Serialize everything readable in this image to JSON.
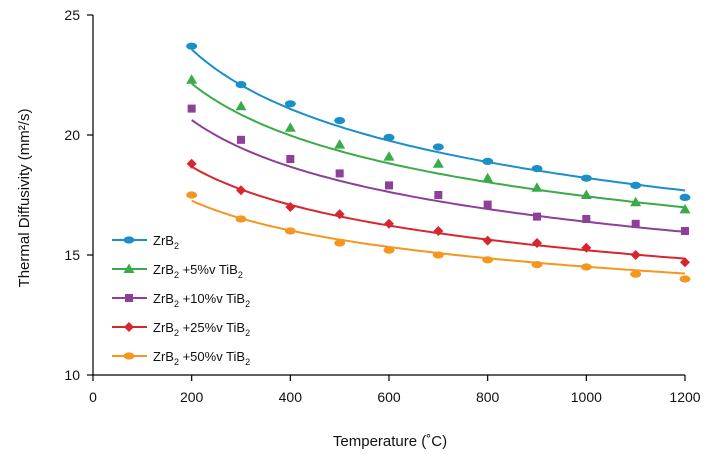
{
  "chart_data": {
    "type": "line",
    "xlabel": "Temperature (˚C)",
    "ylabel": "Thermal Diffusivity (mm²/s)",
    "xlim": [
      0,
      1200
    ],
    "ylim": [
      10,
      25
    ],
    "xticks": [
      0,
      200,
      400,
      600,
      800,
      1000,
      1200
    ],
    "yticks": [
      10,
      15,
      20,
      25
    ],
    "grid": false,
    "legend_position": "lower-left",
    "series": [
      {
        "name": "ZrB₂",
        "name_parts": {
          "base": "ZrB",
          "sub": "2",
          "suffix": ""
        },
        "color": "#1a8fc9",
        "marker": "circle",
        "x": [
          200,
          300,
          400,
          500,
          600,
          700,
          800,
          900,
          1000,
          1100,
          1200
        ],
        "y": [
          23.7,
          22.1,
          21.3,
          20.6,
          19.9,
          19.5,
          18.9,
          18.6,
          18.2,
          17.9,
          17.4
        ],
        "fit": {
          "a": 55.0,
          "b": -0.16
        }
      },
      {
        "name": "ZrB₂ +5%v TiB₂",
        "name_parts": {
          "base": "ZrB",
          "sub": "2",
          "suffix": " +5%v TiB",
          "sub2": "2"
        },
        "color": "#3aab48",
        "marker": "triangle",
        "x": [
          200,
          300,
          400,
          500,
          600,
          700,
          800,
          900,
          1000,
          1100,
          1200
        ],
        "y": [
          22.3,
          21.2,
          20.3,
          19.6,
          19.1,
          18.8,
          18.2,
          17.8,
          17.5,
          17.2,
          16.9
        ],
        "fit": {
          "a": 48.5,
          "b": -0.148
        }
      },
      {
        "name": "ZrB₂ +10%v TiB₂",
        "name_parts": {
          "base": "ZrB",
          "sub": "2",
          "suffix": " +10%v TiB",
          "sub2": "2"
        },
        "color": "#8e3f99",
        "marker": "square",
        "x": [
          200,
          300,
          400,
          500,
          600,
          700,
          800,
          900,
          1000,
          1100,
          1200
        ],
        "y": [
          21.1,
          19.8,
          19.0,
          18.4,
          17.9,
          17.5,
          17.1,
          16.6,
          16.5,
          16.3,
          16.0
        ],
        "fit": {
          "a": 44.0,
          "b": -0.143
        }
      },
      {
        "name": "ZrB₂ +25%v TiB₂",
        "name_parts": {
          "base": "ZrB",
          "sub": "2",
          "suffix": " +25%v TiB",
          "sub2": "2"
        },
        "color": "#d7262e",
        "marker": "diamond",
        "x": [
          200,
          300,
          400,
          500,
          600,
          700,
          800,
          900,
          1000,
          1100,
          1200
        ],
        "y": [
          18.8,
          17.7,
          17.0,
          16.7,
          16.3,
          16.0,
          15.6,
          15.5,
          15.3,
          15.0,
          14.7
        ],
        "fit": {
          "a": 36.8,
          "b": -0.128
        }
      },
      {
        "name": "ZrB₂ +50%v TiB₂",
        "name_parts": {
          "base": "ZrB",
          "sub": "2",
          "suffix": " +50%v TiB",
          "sub2": "2"
        },
        "color": "#f5961e",
        "marker": "circle",
        "x": [
          200,
          300,
          400,
          500,
          600,
          700,
          800,
          900,
          1000,
          1100,
          1200
        ],
        "y": [
          17.5,
          16.5,
          16.0,
          15.5,
          15.2,
          15.0,
          14.8,
          14.6,
          14.5,
          14.2,
          14.0
        ],
        "fit": {
          "a": 30.6,
          "b": -0.108
        }
      }
    ]
  }
}
